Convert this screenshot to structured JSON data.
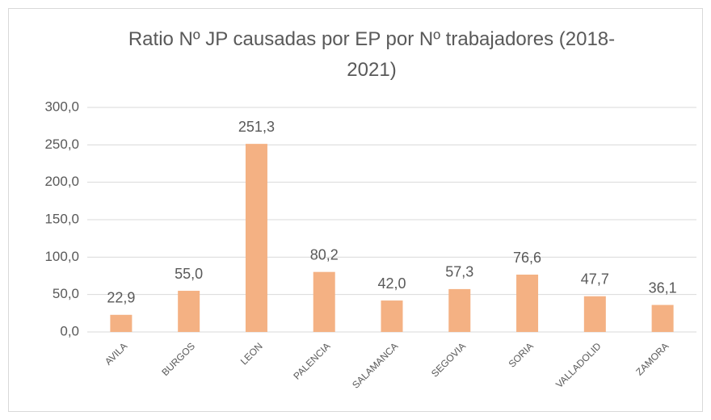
{
  "chart_data": {
    "type": "bar",
    "title": "Ratio Nº JP causadas por EP por Nº trabajadores (2018-2021)",
    "categories": [
      "AVILA",
      "BURGOS",
      "LEON",
      "PALENCIA",
      "SALAMANCA",
      "SEGOVIA",
      "SORIA",
      "VALLADOLID",
      "ZAMORA"
    ],
    "values": [
      22.9,
      55.0,
      251.3,
      80.2,
      42.0,
      57.3,
      76.6,
      47.7,
      36.1
    ],
    "value_labels": [
      "22,9",
      "55,0",
      "251,3",
      "80,2",
      "42,0",
      "57,3",
      "76,6",
      "47,7",
      "36,1"
    ],
    "color": "#f4b183",
    "ylim": [
      0,
      300
    ],
    "yticks": [
      {
        "value": 0,
        "label": "0,0"
      },
      {
        "value": 50,
        "label": "50,0"
      },
      {
        "value": 100,
        "label": "100,0"
      },
      {
        "value": 150,
        "label": "150,0"
      },
      {
        "value": 200,
        "label": "200,0"
      },
      {
        "value": 250,
        "label": "250,0"
      },
      {
        "value": 300,
        "label": "300,0"
      }
    ],
    "grid": true
  }
}
